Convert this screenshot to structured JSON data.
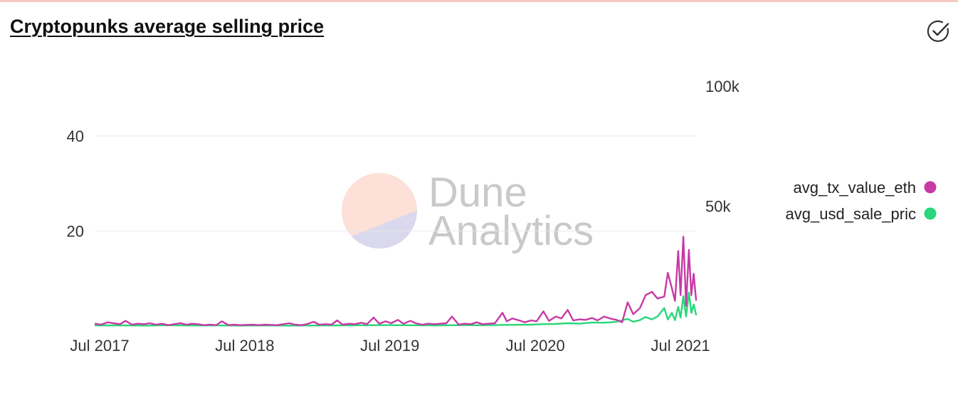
{
  "header": {
    "title": "Cryptopunks average selling price"
  },
  "colors": {
    "accent": "#f7c9c0",
    "eth": "#c63aa5",
    "usd": "#29d67a",
    "grid": "#e8e8e8"
  },
  "icons": {
    "verify": "check-circle-icon"
  },
  "watermark": {
    "line1": "Dune",
    "line2": "Analytics"
  },
  "chart_data": {
    "type": "line",
    "title": "Cryptopunks average selling price",
    "x_axis": {
      "type": "date",
      "range": [
        "2017-07-01",
        "2021-08-20"
      ],
      "ticks": [
        {
          "date": "2017-07-01",
          "label": "Jul 2017"
        },
        {
          "date": "2018-07-01",
          "label": "Jul 2018"
        },
        {
          "date": "2019-07-01",
          "label": "Jul 2019"
        },
        {
          "date": "2020-07-01",
          "label": "Jul 2020"
        },
        {
          "date": "2021-07-01",
          "label": "Jul 2021"
        }
      ]
    },
    "y_left": {
      "series": "avg_tx_value_eth",
      "range": [
        0,
        53
      ],
      "ticks": [
        {
          "value": 20,
          "label": "20"
        },
        {
          "value": 40,
          "label": "40"
        }
      ]
    },
    "y_right": {
      "series": "avg_usd_sale_price",
      "range": [
        0,
        105000
      ],
      "ticks": [
        {
          "value": 50000,
          "label": "50k"
        },
        {
          "value": 100000,
          "label": "100k"
        }
      ]
    },
    "grid": "horizontal",
    "legend_position": "right",
    "series": [
      {
        "name": "avg_tx_value_eth",
        "legend_label": "avg_tx_value_eth",
        "axis": "left",
        "color": "#c63aa5",
        "points": [
          [
            "2017-07-01",
            0.5
          ],
          [
            "2017-07-15",
            0.3
          ],
          [
            "2017-08-01",
            0.8
          ],
          [
            "2017-08-15",
            0.6
          ],
          [
            "2017-09-01",
            0.4
          ],
          [
            "2017-09-15",
            1.1
          ],
          [
            "2017-10-01",
            0.3
          ],
          [
            "2017-10-15",
            0.5
          ],
          [
            "2017-11-01",
            0.4
          ],
          [
            "2017-11-15",
            0.6
          ],
          [
            "2017-12-01",
            0.3
          ],
          [
            "2017-12-15",
            0.5
          ],
          [
            "2018-01-01",
            0.2
          ],
          [
            "2018-01-15",
            0.4
          ],
          [
            "2018-02-01",
            0.6
          ],
          [
            "2018-02-15",
            0.3
          ],
          [
            "2018-03-01",
            0.5
          ],
          [
            "2018-03-15",
            0.4
          ],
          [
            "2018-04-01",
            0.2
          ],
          [
            "2018-04-15",
            0.3
          ],
          [
            "2018-05-01",
            0.2
          ],
          [
            "2018-05-15",
            1.0
          ],
          [
            "2018-06-01",
            0.2
          ],
          [
            "2018-06-15",
            0.3
          ],
          [
            "2018-07-01",
            0.2
          ],
          [
            "2018-08-01",
            0.3
          ],
          [
            "2018-08-15",
            0.2
          ],
          [
            "2018-09-01",
            0.3
          ],
          [
            "2018-10-01",
            0.2
          ],
          [
            "2018-11-01",
            0.6
          ],
          [
            "2018-11-15",
            0.3
          ],
          [
            "2018-12-01",
            0.2
          ],
          [
            "2018-12-15",
            0.4
          ],
          [
            "2019-01-01",
            0.9
          ],
          [
            "2019-01-15",
            0.3
          ],
          [
            "2019-02-01",
            0.4
          ],
          [
            "2019-02-15",
            0.3
          ],
          [
            "2019-03-01",
            1.2
          ],
          [
            "2019-03-15",
            0.3
          ],
          [
            "2019-04-01",
            0.5
          ],
          [
            "2019-04-15",
            0.4
          ],
          [
            "2019-05-01",
            0.7
          ],
          [
            "2019-05-15",
            0.4
          ],
          [
            "2019-06-01",
            1.8
          ],
          [
            "2019-06-15",
            0.5
          ],
          [
            "2019-07-01",
            1.0
          ],
          [
            "2019-07-15",
            0.6
          ],
          [
            "2019-08-01",
            1.3
          ],
          [
            "2019-08-15",
            0.5
          ],
          [
            "2019-09-01",
            1.1
          ],
          [
            "2019-09-15",
            0.6
          ],
          [
            "2019-10-01",
            0.3
          ],
          [
            "2019-10-15",
            0.5
          ],
          [
            "2019-11-01",
            0.4
          ],
          [
            "2019-12-01",
            0.6
          ],
          [
            "2019-12-15",
            2.0
          ],
          [
            "2020-01-01",
            0.3
          ],
          [
            "2020-01-15",
            0.5
          ],
          [
            "2020-02-01",
            0.4
          ],
          [
            "2020-02-15",
            0.8
          ],
          [
            "2020-03-01",
            0.4
          ],
          [
            "2020-03-15",
            0.5
          ],
          [
            "2020-04-01",
            0.6
          ],
          [
            "2020-04-20",
            2.8
          ],
          [
            "2020-05-01",
            1.0
          ],
          [
            "2020-05-15",
            1.6
          ],
          [
            "2020-06-01",
            1.2
          ],
          [
            "2020-06-15",
            0.8
          ],
          [
            "2020-07-01",
            1.2
          ],
          [
            "2020-07-15",
            1.0
          ],
          [
            "2020-08-01",
            3.1
          ],
          [
            "2020-08-15",
            1.1
          ],
          [
            "2020-09-01",
            2.0
          ],
          [
            "2020-09-15",
            1.6
          ],
          [
            "2020-10-01",
            3.4
          ],
          [
            "2020-10-15",
            1.2
          ],
          [
            "2020-11-01",
            1.4
          ],
          [
            "2020-11-15",
            1.3
          ],
          [
            "2020-12-01",
            1.7
          ],
          [
            "2020-12-15",
            1.2
          ],
          [
            "2021-01-01",
            2.0
          ],
          [
            "2021-01-15",
            1.6
          ],
          [
            "2021-02-01",
            1.3
          ],
          [
            "2021-02-15",
            0.8
          ],
          [
            "2021-03-01",
            5.0
          ],
          [
            "2021-03-15",
            2.5
          ],
          [
            "2021-04-01",
            3.8
          ],
          [
            "2021-04-15",
            6.5
          ],
          [
            "2021-05-01",
            7.2
          ],
          [
            "2021-05-15",
            5.8
          ],
          [
            "2021-06-01",
            6.2
          ],
          [
            "2021-06-10",
            11.2
          ],
          [
            "2021-06-20",
            8.0
          ],
          [
            "2021-06-28",
            5.3
          ],
          [
            "2021-07-06",
            15.8
          ],
          [
            "2021-07-12",
            6.5
          ],
          [
            "2021-07-19",
            18.8
          ],
          [
            "2021-07-26",
            4.3
          ],
          [
            "2021-08-02",
            16.0
          ],
          [
            "2021-08-08",
            6.5
          ],
          [
            "2021-08-14",
            11.0
          ],
          [
            "2021-08-20",
            5.5
          ]
        ]
      },
      {
        "name": "avg_usd_sale_price",
        "legend_label": "avg_usd_sale_pric",
        "axis": "right",
        "color": "#29d67a",
        "points": [
          [
            "2017-07-01",
            250
          ],
          [
            "2017-09-01",
            300
          ],
          [
            "2017-11-01",
            200
          ],
          [
            "2018-01-01",
            350
          ],
          [
            "2018-03-01",
            250
          ],
          [
            "2018-05-01",
            300
          ],
          [
            "2018-07-01",
            200
          ],
          [
            "2018-09-01",
            250
          ],
          [
            "2018-11-01",
            200
          ],
          [
            "2019-01-01",
            250
          ],
          [
            "2019-03-01",
            300
          ],
          [
            "2019-05-01",
            350
          ],
          [
            "2019-07-01",
            400
          ],
          [
            "2019-09-01",
            350
          ],
          [
            "2019-11-01",
            300
          ],
          [
            "2020-01-01",
            400
          ],
          [
            "2020-03-01",
            350
          ],
          [
            "2020-05-01",
            500
          ],
          [
            "2020-07-01",
            600
          ],
          [
            "2020-08-01",
            800
          ],
          [
            "2020-09-01",
            900
          ],
          [
            "2020-10-01",
            1200
          ],
          [
            "2020-11-01",
            1000
          ],
          [
            "2020-12-01",
            1500
          ],
          [
            "2021-01-01",
            1400
          ],
          [
            "2021-02-01",
            1800
          ],
          [
            "2021-03-01",
            3000
          ],
          [
            "2021-03-15",
            1800
          ],
          [
            "2021-04-01",
            2500
          ],
          [
            "2021-04-15",
            3800
          ],
          [
            "2021-05-01",
            2800
          ],
          [
            "2021-05-15",
            4000
          ],
          [
            "2021-06-01",
            7500
          ],
          [
            "2021-06-10",
            2800
          ],
          [
            "2021-06-20",
            5500
          ],
          [
            "2021-06-28",
            2500
          ],
          [
            "2021-07-06",
            8000
          ],
          [
            "2021-07-12",
            3500
          ],
          [
            "2021-07-19",
            12500
          ],
          [
            "2021-07-26",
            4000
          ],
          [
            "2021-08-02",
            14000
          ],
          [
            "2021-08-08",
            5500
          ],
          [
            "2021-08-14",
            9000
          ],
          [
            "2021-08-20",
            4800
          ]
        ]
      }
    ]
  }
}
